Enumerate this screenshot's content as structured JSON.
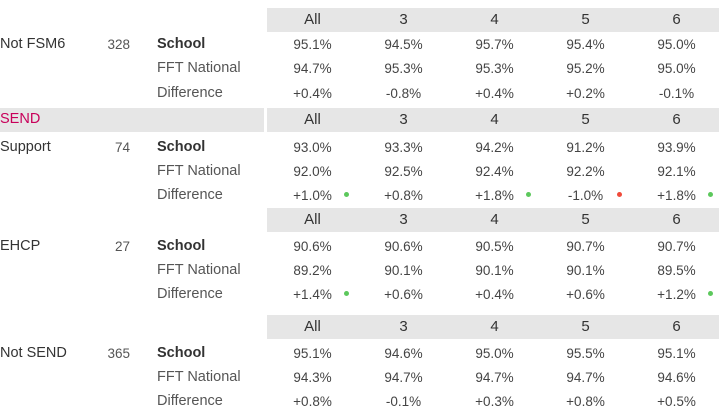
{
  "columns": [
    "All",
    "3",
    "4",
    "5",
    "6"
  ],
  "section_title": "SEND",
  "colors": {
    "good": "#5cc85c",
    "bad": "#f04a3a",
    "accent": "#c8005a",
    "header_bg": "#e6e6e6"
  },
  "groups": [
    {
      "name": "Not FSM6",
      "count": "328",
      "rows": [
        {
          "label": "School",
          "values": [
            "95.1%",
            "94.5%",
            "95.7%",
            "95.4%",
            "95.0%"
          ]
        },
        {
          "label": "FFT National",
          "values": [
            "94.7%",
            "95.3%",
            "95.3%",
            "95.2%",
            "95.0%"
          ]
        },
        {
          "label": "Difference",
          "values": [
            "+0.4%",
            "-0.8%",
            "+0.4%",
            "+0.2%",
            "-0.1%"
          ]
        }
      ],
      "dots": [
        "",
        "",
        "",
        "",
        ""
      ]
    },
    {
      "name": "Support",
      "count": "74",
      "rows": [
        {
          "label": "School",
          "values": [
            "93.0%",
            "93.3%",
            "94.2%",
            "91.2%",
            "93.9%"
          ]
        },
        {
          "label": "FFT National",
          "values": [
            "92.0%",
            "92.5%",
            "92.4%",
            "92.2%",
            "92.1%"
          ]
        },
        {
          "label": "Difference",
          "values": [
            "+1.0%",
            "+0.8%",
            "+1.8%",
            "-1.0%",
            "+1.8%"
          ]
        }
      ],
      "dots": [
        "good",
        "",
        "good",
        "bad",
        "good"
      ]
    },
    {
      "name": "EHCP",
      "count": "27",
      "rows": [
        {
          "label": "School",
          "values": [
            "90.6%",
            "90.6%",
            "90.5%",
            "90.7%",
            "90.7%"
          ]
        },
        {
          "label": "FFT National",
          "values": [
            "89.2%",
            "90.1%",
            "90.1%",
            "90.1%",
            "89.5%"
          ]
        },
        {
          "label": "Difference",
          "values": [
            "+1.4%",
            "+0.6%",
            "+0.4%",
            "+0.6%",
            "+1.2%"
          ]
        }
      ],
      "dots": [
        "good",
        "",
        "",
        "",
        "good"
      ]
    },
    {
      "name": "Not SEND",
      "count": "365",
      "rows": [
        {
          "label": "School",
          "values": [
            "95.1%",
            "94.6%",
            "95.0%",
            "95.5%",
            "95.1%"
          ]
        },
        {
          "label": "FFT National",
          "values": [
            "94.3%",
            "94.7%",
            "94.7%",
            "94.7%",
            "94.6%"
          ]
        },
        {
          "label": "Difference",
          "values": [
            "+0.8%",
            "-0.1%",
            "+0.3%",
            "+0.8%",
            "+0.5%"
          ]
        }
      ],
      "dots": [
        "",
        "",
        "",
        "",
        ""
      ]
    }
  ]
}
